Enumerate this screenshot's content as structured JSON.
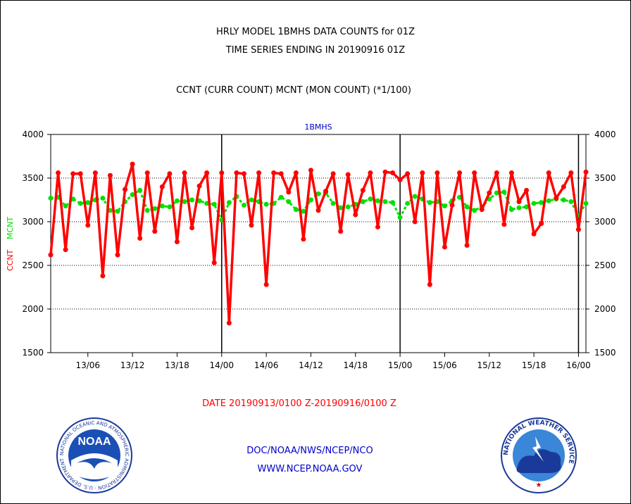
{
  "header": {
    "title_line1": "HRLY MODEL 1BMHS DATA COUNTS for 01Z",
    "title_line2": "TIME SERIES ENDING IN 20190916 01Z",
    "subtitle": "CCNT (CURR COUNT) MCNT (MON COUNT) (*1/100)"
  },
  "footer": {
    "date_range": "DATE 20190913/0100 Z-20190916/0100 Z",
    "org": "DOC/NOAA/NWS/NCEP/NCO",
    "url": "WWW.NCEP.NOAA.GOV"
  },
  "logos": {
    "noaa_text": "NOAA",
    "noaa_ring": "NATIONAL OCEANIC AND ATMOSPHERIC ADMINISTRATION · U.S. DEPARTMENT OF COMMERCE",
    "nws_ring": "NATIONAL WEATHER SERVICE"
  },
  "chart_data": {
    "type": "line",
    "title": "1BMHS",
    "ylabel_left_ccnt": "CCNT",
    "ylabel_left_mcnt": "MCNT",
    "ylim": [
      1500,
      4000
    ],
    "yticks": [
      1500,
      2000,
      2500,
      3000,
      3500,
      4000
    ],
    "xticks": [
      "13/06",
      "13/12",
      "13/18",
      "14/00",
      "14/06",
      "14/12",
      "14/18",
      "15/00",
      "15/06",
      "15/12",
      "15/18",
      "16/00"
    ],
    "xtick_hours": [
      5,
      11,
      17,
      23,
      29,
      35,
      41,
      47,
      53,
      59,
      65,
      71
    ],
    "day_boundary_hours": [
      23,
      47,
      71
    ],
    "x_range_hours": [
      0,
      72
    ],
    "grid": "horizontal dotted",
    "colors": {
      "ccnt": "#ff0000",
      "mcnt": "#00e000",
      "title": "#0000cc"
    },
    "series": [
      {
        "name": "CCNT",
        "values": [
          2620,
          3560,
          2680,
          3550,
          3550,
          2960,
          3560,
          2380,
          3530,
          2620,
          3370,
          3660,
          2810,
          3560,
          2890,
          3400,
          3550,
          2770,
          3560,
          2930,
          3410,
          3560,
          2530,
          3560,
          1840,
          3560,
          3550,
          2960,
          3560,
          2280,
          3560,
          3550,
          3340,
          3560,
          2800,
          3590,
          3130,
          3350,
          3550,
          2890,
          3540,
          3080,
          3360,
          3560,
          2940,
          3570,
          3560,
          3480,
          3550,
          3000,
          3560,
          2280,
          3560,
          2710,
          3190,
          3560,
          2730,
          3560,
          3140,
          3330,
          3560,
          2970,
          3560,
          3230,
          3360,
          2860,
          2980,
          3560,
          3270,
          3400,
          3560,
          2910,
          3570
        ]
      },
      {
        "name": "MCNT",
        "values": [
          3270,
          3280,
          3180,
          3260,
          3210,
          3220,
          3250,
          3270,
          3130,
          3120,
          3230,
          3310,
          3360,
          3130,
          3150,
          3180,
          3170,
          3240,
          3230,
          3250,
          3240,
          3210,
          3200,
          3020,
          3220,
          3290,
          3190,
          3250,
          3230,
          3200,
          3210,
          3280,
          3230,
          3140,
          3120,
          3250,
          3320,
          3330,
          3210,
          3160,
          3170,
          3200,
          3230,
          3260,
          3240,
          3230,
          3220,
          3050,
          3210,
          3290,
          3260,
          3220,
          3230,
          3180,
          3240,
          3280,
          3170,
          3130,
          3170,
          3260,
          3330,
          3340,
          3140,
          3160,
          3170,
          3210,
          3220,
          3240,
          3260,
          3250,
          3230,
          3070,
          3210
        ]
      }
    ]
  }
}
